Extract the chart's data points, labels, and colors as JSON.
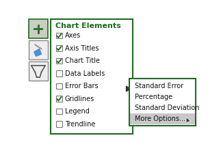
{
  "bg_color": "#ffffff",
  "panel_border_color": "#1e6b1e",
  "panel_bg": "#ffffff",
  "header_color": "#1e6b1e",
  "header_text": "Chart Elements",
  "menu_items": [
    "Axes",
    "Axis Titles",
    "Chart Title",
    "Data Labels",
    "Error Bars",
    "Gridlines",
    "Legend",
    "Trendline"
  ],
  "checked_items": [
    0,
    1,
    2,
    5
  ],
  "submenu_items": [
    "Standard Error",
    "Percentage",
    "Standard Deviation",
    "More Options..."
  ],
  "submenu_highlighted": 3,
  "submenu_highlight_color": "#c8c8c8",
  "check_color": "#1e6b1e",
  "arrow_color": "#333333",
  "text_color": "#111111",
  "sidebar_bg": "#e0e0e0",
  "sidebar_border": "#888888",
  "grid_icon_line": "#777777",
  "grid_icon_plus_color": "#555555",
  "sidebar_icon1_bg": "#d0d4cc",
  "sidebar_icon2_bg": "#eeeeee",
  "sidebar_icon3_bg": "#eeeeee"
}
